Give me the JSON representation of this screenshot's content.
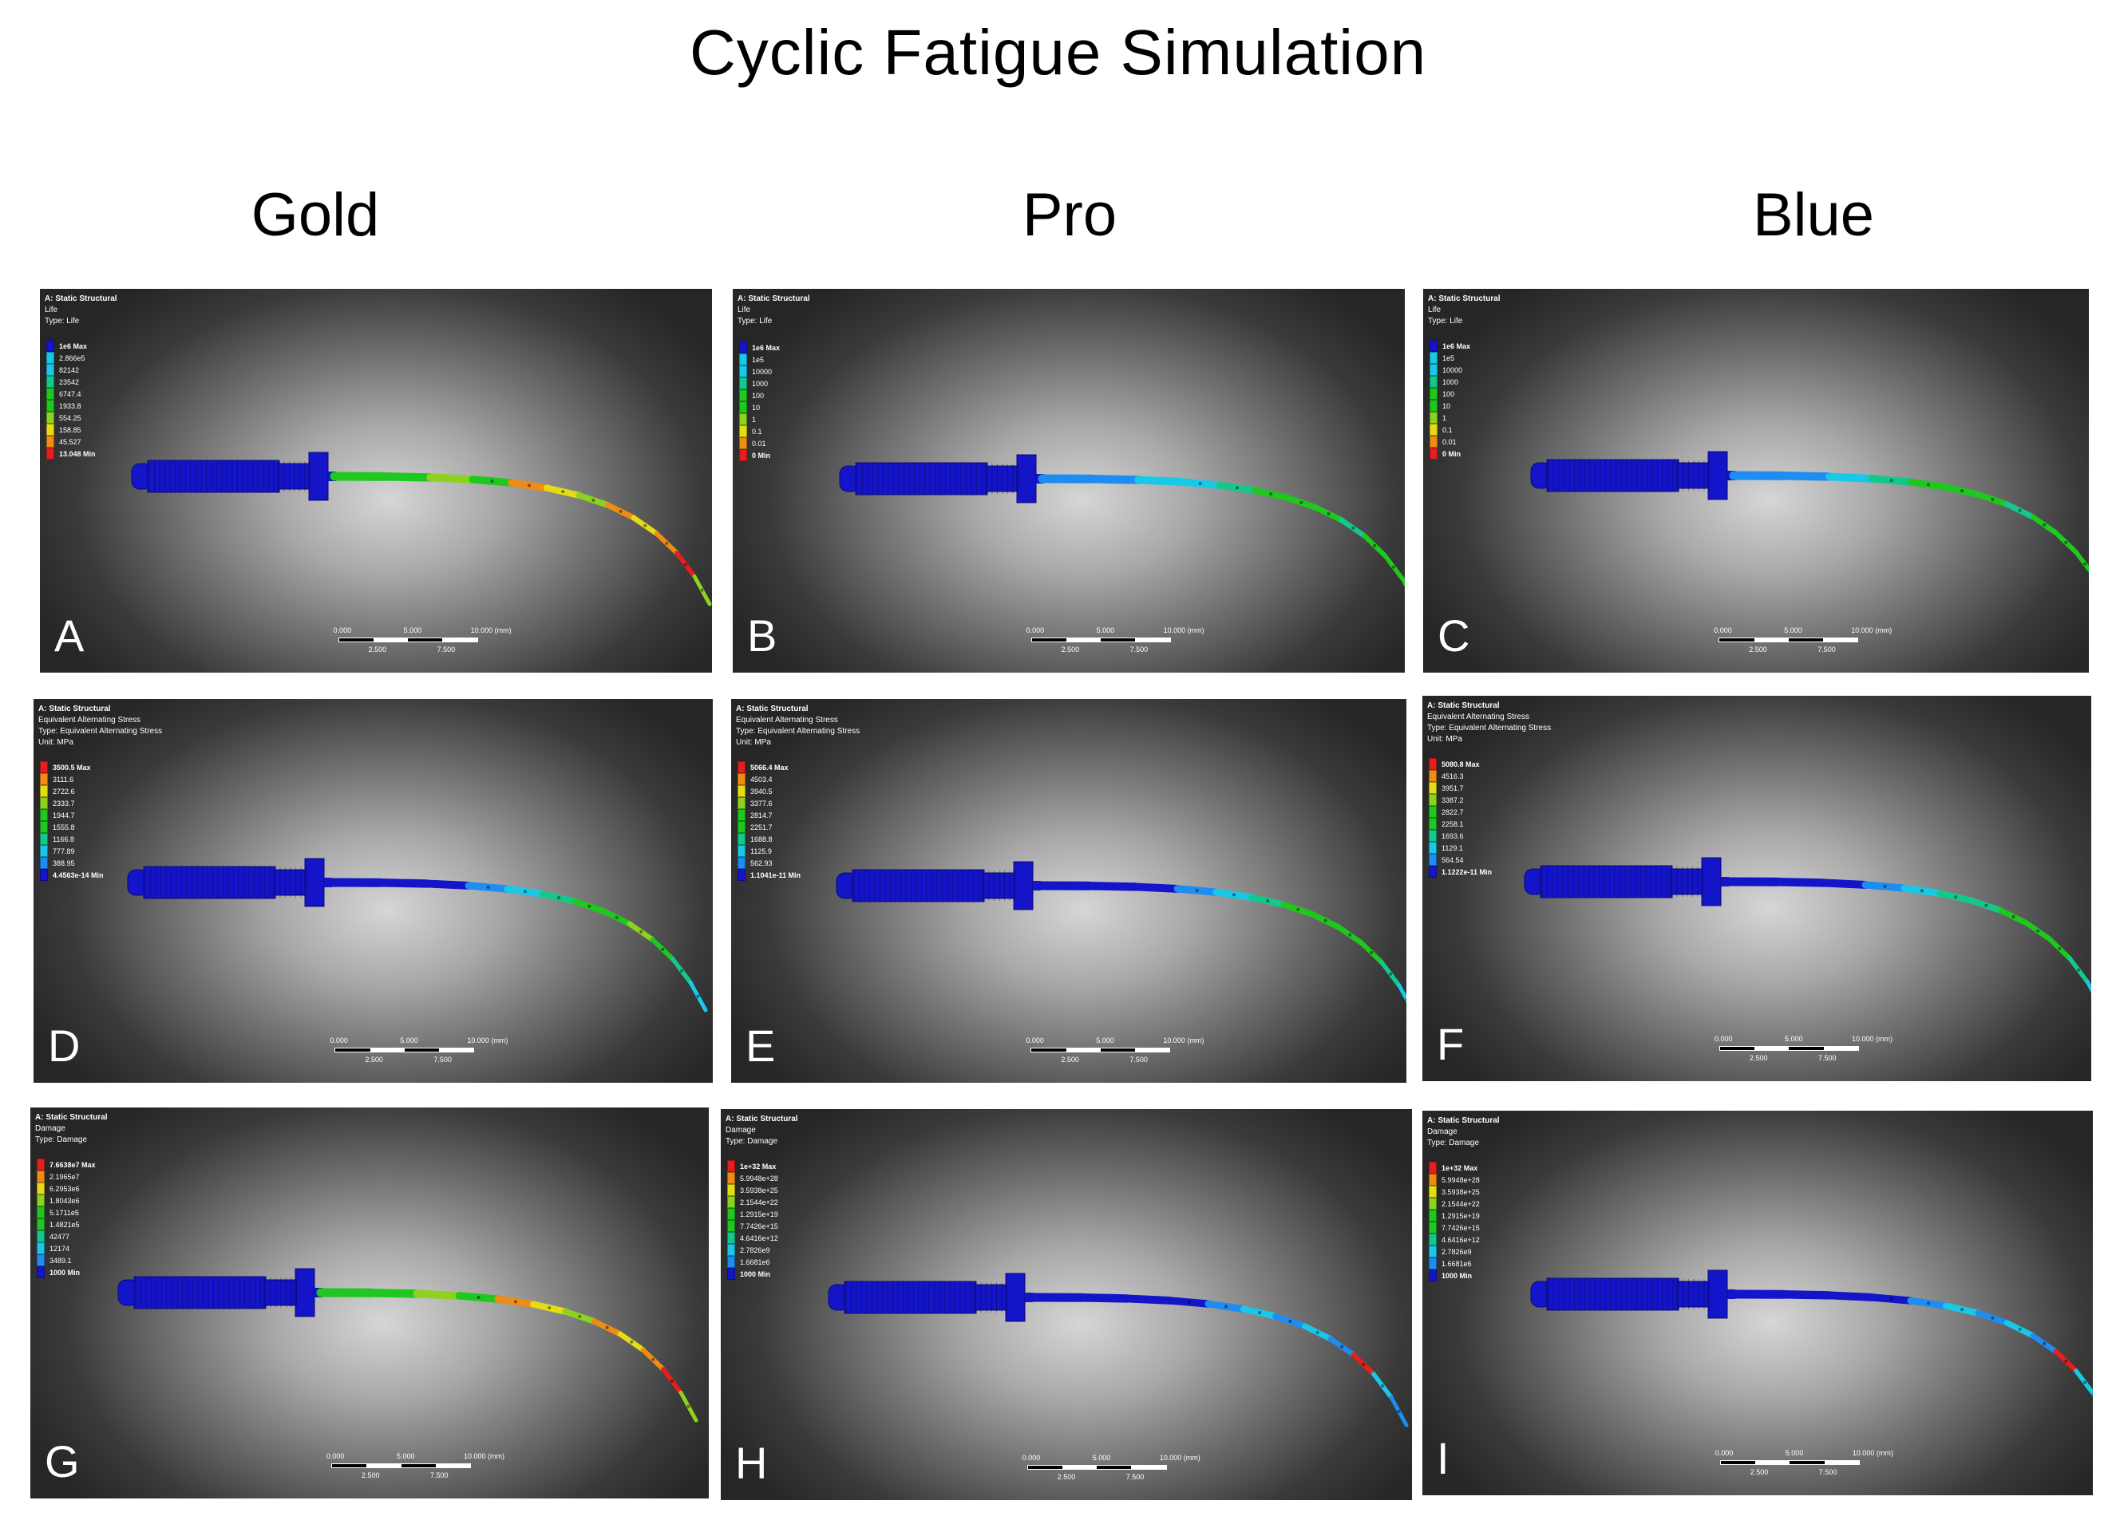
{
  "figure": {
    "title": "Cyclic Fatigue Simulation",
    "columns": [
      "Gold",
      "Pro",
      "Blue"
    ]
  },
  "colors": {
    "handle": "#1414c8",
    "red": "#e61e1e",
    "orange": "#f08c14",
    "yellow": "#e6dc14",
    "yellowgreen": "#8cd21e",
    "green": "#1ec81e",
    "teal": "#14c88c",
    "cyan": "#19c8e6",
    "lightblue": "#1e8cf0",
    "blue": "#1414c8"
  },
  "panels": [
    {
      "letter": "A",
      "header": [
        "A: Static Structural",
        "Life",
        "Type: Life"
      ],
      "legend": {
        "labels": [
          "1e6 Max",
          "2.866e5",
          "82142",
          "23542",
          "6747.4",
          "1933.8",
          "554.25",
          "158.85",
          "45.527",
          "13.048 Min"
        ],
        "colors": [
          "blue",
          "cyan",
          "cyan",
          "teal",
          "green",
          "green",
          "yellowgreen",
          "yellow",
          "orange",
          "red"
        ]
      },
      "shaft": [
        "green",
        "green",
        "yellowgreen",
        "green",
        "orange",
        "yellow",
        "yellowgreen",
        "orange",
        "yellow",
        "orange",
        "red",
        "yellowgreen"
      ],
      "scale": {
        "top": [
          "0.000",
          "5.000",
          "10.000 (mm)"
        ],
        "bottom": [
          "2.500",
          "7.500"
        ]
      }
    },
    {
      "letter": "B",
      "header": [
        "A: Static Structural",
        "Life",
        "Type: Life"
      ],
      "legend": {
        "labels": [
          "1e6 Max",
          "1e5",
          "10000",
          "1000",
          "100",
          "10",
          "1",
          "0.1",
          "0.01",
          "0 Min"
        ],
        "colors": [
          "blue",
          "cyan",
          "cyan",
          "teal",
          "green",
          "green",
          "yellowgreen",
          "yellow",
          "orange",
          "red"
        ]
      },
      "shaft": [
        "lightblue",
        "lightblue",
        "cyan",
        "cyan",
        "teal",
        "green",
        "green",
        "green",
        "teal",
        "green",
        "green",
        "green"
      ],
      "scale": {
        "top": [
          "0.000",
          "5.000",
          "10.000 (mm)"
        ],
        "bottom": [
          "2.500",
          "7.500"
        ]
      }
    },
    {
      "letter": "C",
      "header": [
        "A: Static Structural",
        "Life",
        "Type: Life"
      ],
      "legend": {
        "labels": [
          "1e6 Max",
          "1e5",
          "10000",
          "1000",
          "100",
          "10",
          "1",
          "0.1",
          "0.01",
          "0 Min"
        ],
        "colors": [
          "blue",
          "cyan",
          "cyan",
          "teal",
          "green",
          "green",
          "yellowgreen",
          "yellow",
          "orange",
          "red"
        ]
      },
      "shaft": [
        "lightblue",
        "lightblue",
        "cyan",
        "teal",
        "green",
        "green",
        "green",
        "teal",
        "green",
        "green",
        "green",
        "green"
      ],
      "scale": {
        "top": [
          "0.000",
          "5.000",
          "10.000 (mm)"
        ],
        "bottom": [
          "2.500",
          "7.500"
        ]
      }
    },
    {
      "letter": "D",
      "header": [
        "A: Static Structural",
        "Equivalent Alternating Stress",
        "Type: Equivalent Alternating Stress",
        "Unit: MPa"
      ],
      "legend": {
        "labels": [
          "3500.5 Max",
          "3111.6",
          "2722.6",
          "2333.7",
          "1944.7",
          "1555.8",
          "1166.8",
          "777.89",
          "388.95",
          "4.4563e-14 Min"
        ],
        "colors": [
          "red",
          "orange",
          "yellow",
          "yellowgreen",
          "green",
          "green",
          "teal",
          "cyan",
          "lightblue",
          "blue"
        ]
      },
      "shaft": [
        "blue",
        "blue",
        "blue",
        "lightblue",
        "cyan",
        "teal",
        "green",
        "green",
        "yellowgreen",
        "green",
        "teal",
        "cyan"
      ],
      "scale": {
        "top": [
          "0.000",
          "5.000",
          "10.000 (mm)"
        ],
        "bottom": [
          "2.500",
          "7.500"
        ]
      }
    },
    {
      "letter": "E",
      "header": [
        "A: Static Structural",
        "Equivalent Alternating Stress",
        "Type: Equivalent Alternating Stress",
        "Unit: MPa"
      ],
      "legend": {
        "labels": [
          "5066.4 Max",
          "4503.4",
          "3940.5",
          "3377.6",
          "2814.7",
          "2251.7",
          "1688.8",
          "1125.9",
          "562.93",
          "1.1041e-11 Min"
        ],
        "colors": [
          "red",
          "orange",
          "yellow",
          "yellowgreen",
          "green",
          "green",
          "teal",
          "cyan",
          "lightblue",
          "blue"
        ]
      },
      "shaft": [
        "blue",
        "blue",
        "blue",
        "lightblue",
        "cyan",
        "teal",
        "green",
        "green",
        "green",
        "green",
        "teal",
        "cyan"
      ],
      "scale": {
        "top": [
          "0.000",
          "5.000",
          "10.000 (mm)"
        ],
        "bottom": [
          "2.500",
          "7.500"
        ]
      }
    },
    {
      "letter": "F",
      "header": [
        "A: Static Structural",
        "Equivalent Alternating Stress",
        "Type: Equivalent Alternating Stress",
        "Unit: MPa"
      ],
      "legend": {
        "labels": [
          "5080.8 Max",
          "4516.3",
          "3951.7",
          "3387.2",
          "2822.7",
          "2258.1",
          "1693.6",
          "1129.1",
          "564.54",
          "1.1222e-11 Min"
        ],
        "colors": [
          "red",
          "orange",
          "yellow",
          "yellowgreen",
          "green",
          "green",
          "teal",
          "cyan",
          "lightblue",
          "blue"
        ]
      },
      "shaft": [
        "blue",
        "blue",
        "blue",
        "lightblue",
        "cyan",
        "teal",
        "teal",
        "green",
        "green",
        "green",
        "teal",
        "cyan"
      ],
      "scale": {
        "top": [
          "0.000",
          "5.000",
          "10.000 (mm)"
        ],
        "bottom": [
          "2.500",
          "7.500"
        ]
      }
    },
    {
      "letter": "G",
      "header": [
        "A: Static Structural",
        "Damage",
        "Type: Damage"
      ],
      "legend": {
        "labels": [
          "7.6638e7 Max",
          "2.1965e7",
          "6.2953e6",
          "1.8043e6",
          "5.1711e5",
          "1.4821e5",
          "42477",
          "12174",
          "3489.1",
          "1000 Min"
        ],
        "colors": [
          "red",
          "orange",
          "yellow",
          "yellowgreen",
          "green",
          "green",
          "teal",
          "cyan",
          "lightblue",
          "blue"
        ]
      },
      "shaft": [
        "green",
        "green",
        "yellowgreen",
        "green",
        "orange",
        "yellow",
        "yellowgreen",
        "orange",
        "yellow",
        "orange",
        "red",
        "yellowgreen"
      ],
      "scale": {
        "top": [
          "0.000",
          "5.000",
          "10.000 (mm)"
        ],
        "bottom": [
          "2.500",
          "7.500"
        ]
      }
    },
    {
      "letter": "H",
      "header": [
        "A: Static Structural",
        "Damage",
        "Type: Damage"
      ],
      "legend": {
        "labels": [
          "1e+32 Max",
          "5.9948e+28",
          "3.5938e+25",
          "2.1544e+22",
          "1.2915e+19",
          "7.7426e+15",
          "4.6416e+12",
          "2.7826e9",
          "1.6681e6",
          "1000 Min"
        ],
        "colors": [
          "red",
          "orange",
          "yellow",
          "yellowgreen",
          "green",
          "green",
          "teal",
          "cyan",
          "lightblue",
          "blue"
        ]
      },
      "shaft": [
        "blue",
        "blue",
        "blue",
        "blue",
        "lightblue",
        "cyan",
        "lightblue",
        "cyan",
        "lightblue",
        "red",
        "cyan",
        "lightblue"
      ],
      "scale": {
        "top": [
          "0.000",
          "5.000",
          "10.000 (mm)"
        ],
        "bottom": [
          "2.500",
          "7.500"
        ]
      }
    },
    {
      "letter": "I",
      "header": [
        "A: Static Structural",
        "Damage",
        "Type: Damage"
      ],
      "legend": {
        "labels": [
          "1e+32 Max",
          "5.9948e+28",
          "3.5938e+25",
          "2.1544e+22",
          "1.2915e+19",
          "7.7426e+15",
          "4.6416e+12",
          "2.7826e9",
          "1.6681e6",
          "1000 Min"
        ],
        "colors": [
          "red",
          "orange",
          "yellow",
          "yellowgreen",
          "green",
          "green",
          "teal",
          "cyan",
          "lightblue",
          "blue"
        ]
      },
      "shaft": [
        "blue",
        "blue",
        "blue",
        "blue",
        "lightblue",
        "cyan",
        "lightblue",
        "cyan",
        "lightblue",
        "red",
        "cyan",
        "lightblue"
      ],
      "scale": {
        "top": [
          "0.000",
          "5.000",
          "10.000 (mm)"
        ],
        "bottom": [
          "2.500",
          "7.500"
        ]
      }
    }
  ]
}
